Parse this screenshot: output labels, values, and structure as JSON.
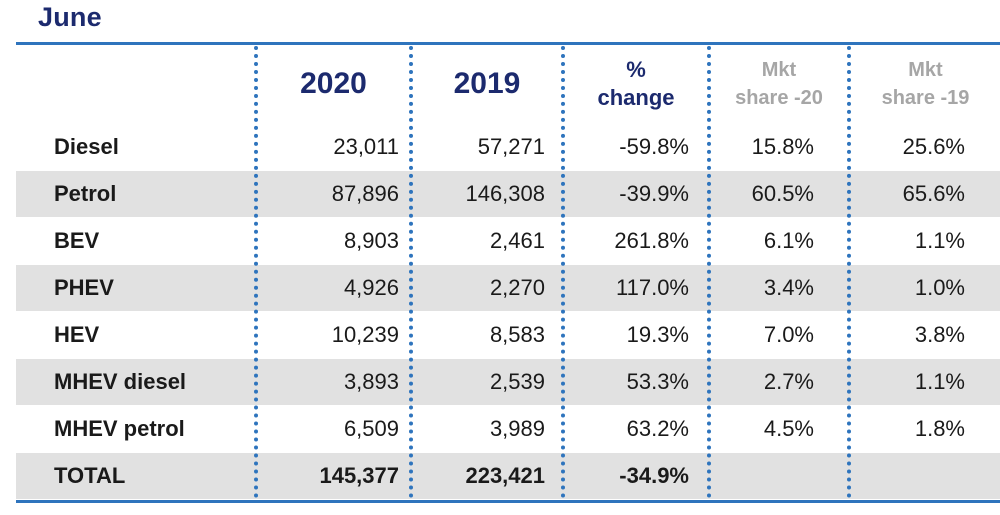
{
  "title": "June",
  "columns": {
    "y2020": "2020",
    "y2019": "2019",
    "pct_line1": "%",
    "pct_line2": "change",
    "mkt20_line1": "Mkt",
    "mkt20_line2": "share -20",
    "mkt19_line1": "Mkt",
    "mkt19_line2": "share -19"
  },
  "chart_data": {
    "type": "table",
    "columns": [
      "",
      "2020",
      "2019",
      "% change",
      "Mkt share -20",
      "Mkt share -19"
    ],
    "rows": [
      {
        "label": "Diesel",
        "y2020": "23,011",
        "y2019": "57,271",
        "pct_change": "-59.8%",
        "share_2020": "15.8%",
        "share_2019": "25.6%"
      },
      {
        "label": "Petrol",
        "y2020": "87,896",
        "y2019": "146,308",
        "pct_change": "-39.9%",
        "share_2020": "60.5%",
        "share_2019": "65.6%"
      },
      {
        "label": "BEV",
        "y2020": "8,903",
        "y2019": "2,461",
        "pct_change": "261.8%",
        "share_2020": "6.1%",
        "share_2019": "1.1%"
      },
      {
        "label": "PHEV",
        "y2020": "4,926",
        "y2019": "2,270",
        "pct_change": "117.0%",
        "share_2020": "3.4%",
        "share_2019": "1.0%"
      },
      {
        "label": "HEV",
        "y2020": "10,239",
        "y2019": "8,583",
        "pct_change": "19.3%",
        "share_2020": "7.0%",
        "share_2019": "3.8%"
      },
      {
        "label": "MHEV diesel",
        "y2020": "3,893",
        "y2019": "2,539",
        "pct_change": "53.3%",
        "share_2020": "2.7%",
        "share_2019": "1.1%"
      },
      {
        "label": "MHEV petrol",
        "y2020": "6,509",
        "y2019": "3,989",
        "pct_change": "63.2%",
        "share_2020": "4.5%",
        "share_2019": "1.8%"
      }
    ],
    "total": {
      "label": "TOTAL",
      "y2020": "145,377",
      "y2019": "223,421",
      "pct_change": "-34.9%",
      "share_2020": "",
      "share_2019": ""
    }
  },
  "colors": {
    "title": "#1c2a6e",
    "rule": "#2e74bd",
    "band": "#e1e1e1",
    "muted_header": "#a6a6a6"
  }
}
